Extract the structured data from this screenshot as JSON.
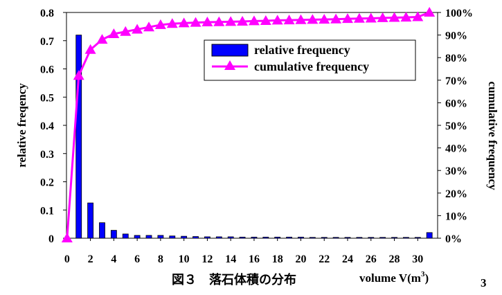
{
  "chart_data": {
    "type": "bar+line",
    "caption": "図３　落石体積の分布",
    "xlabel": "volume V(m",
    "xlabel_sup": "3",
    "xlabel_suffix": ")",
    "stray_sup": "3",
    "ylabel_left": "relative freqency",
    "ylabel_right": "cumulative frequency",
    "x_ticks": [
      0,
      2,
      4,
      6,
      8,
      10,
      12,
      14,
      16,
      18,
      20,
      22,
      24,
      26,
      28,
      30
    ],
    "x_range": [
      -0.05,
      31.7
    ],
    "y_left_ticks": [
      "0",
      "0.1",
      "0.2",
      "0.3",
      "0.4",
      "0.5",
      "0.6",
      "0.7",
      "0.8"
    ],
    "y_left_range": [
      0,
      0.8
    ],
    "y_right_ticks": [
      "0%",
      "10%",
      "20%",
      "30%",
      "40%",
      "50%",
      "60%",
      "70%",
      "80%",
      "90%",
      "100%"
    ],
    "y_right_range": [
      0,
      1.0
    ],
    "series": [
      {
        "name": "relative frequency",
        "kind": "bar",
        "axis": "left",
        "color": "#0000ff",
        "x": [
          1,
          2,
          3,
          4,
          5,
          6,
          7,
          8,
          9,
          10,
          11,
          12,
          13,
          14,
          15,
          16,
          17,
          18,
          19,
          20,
          21,
          22,
          23,
          24,
          25,
          26,
          27,
          28,
          29,
          30,
          31
        ],
        "values": [
          0.72,
          0.125,
          0.055,
          0.028,
          0.015,
          0.01,
          0.01,
          0.01,
          0.008,
          0.007,
          0.006,
          0.005,
          0.005,
          0.005,
          0.004,
          0.004,
          0.004,
          0.004,
          0.004,
          0.004,
          0.003,
          0.003,
          0.003,
          0.003,
          0.003,
          0.003,
          0.003,
          0.003,
          0.003,
          0.003,
          0.02
        ]
      },
      {
        "name": "cumulative frequency",
        "kind": "line",
        "axis": "right",
        "color": "#ff00ff",
        "x": [
          0,
          1,
          2,
          3,
          4,
          5,
          6,
          7,
          8,
          9,
          10,
          11,
          12,
          13,
          14,
          15,
          16,
          17,
          18,
          19,
          20,
          21,
          22,
          23,
          24,
          25,
          26,
          27,
          28,
          29,
          30,
          31
        ],
        "values": [
          0.0,
          0.72,
          0.835,
          0.88,
          0.905,
          0.915,
          0.925,
          0.935,
          0.945,
          0.95,
          0.953,
          0.955,
          0.957,
          0.958,
          0.959,
          0.96,
          0.962,
          0.963,
          0.965,
          0.966,
          0.967,
          0.968,
          0.969,
          0.97,
          0.972,
          0.973,
          0.974,
          0.976,
          0.977,
          0.978,
          0.98,
          1.0
        ]
      }
    ],
    "legend": {
      "placement": "top-right",
      "entries": [
        "relative frequency",
        "cumulative frequency"
      ]
    },
    "grid": false
  }
}
